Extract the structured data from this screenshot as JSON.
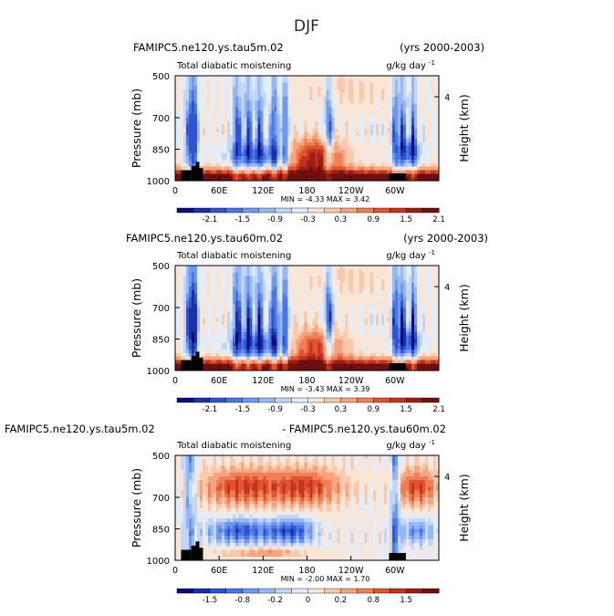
{
  "title": "DJF",
  "colors": {
    "colorbar_a": [
      "#0b0b7a",
      "#1c2fa6",
      "#2f54cf",
      "#4a77e6",
      "#6f98ee",
      "#98b8f2",
      "#c3d6f5",
      "#e3ecf7",
      "#fbe6d6",
      "#f8c9ab",
      "#f4a57f",
      "#ee7f56",
      "#e0542e",
      "#c3331d",
      "#9b1e15",
      "#6f1010"
    ],
    "colorbar_b": [
      "#0b0b7a",
      "#1c2fa6",
      "#2f54cf",
      "#4a77e6",
      "#6f98ee",
      "#98b8f2",
      "#c3d6f5",
      "#e3ecf7",
      "#fbe6d6",
      "#f8c9ab",
      "#f4a57f",
      "#ee7f56",
      "#e0542e",
      "#c3331d",
      "#9b1e15",
      "#6f1010"
    ],
    "topography": "#000000"
  },
  "chart_data": [
    {
      "type": "heatmap",
      "case_label": "FAMIPC5.ne120.ys.tau5m.02",
      "period": "(yrs 2000-2003)",
      "variable": "Total diabatic moistening",
      "units": "g/kg day",
      "units_exp": "-1",
      "ylabel": "Pressure (mb)",
      "y2label": "Height (km)",
      "yticks": [
        "500",
        "700",
        "850",
        "1000"
      ],
      "y2ticks": [
        "4"
      ],
      "xticks": [
        "0",
        "60E",
        "120E",
        "180",
        "120W",
        "60W"
      ],
      "ylim": [
        1000,
        500
      ],
      "minmax": "MIN =   -4.33  MAX =   3.42",
      "colorbar_labels": [
        "-2.1",
        "-1.5",
        "-0.9",
        "-0.3",
        "0.3",
        "0.9",
        "1.5",
        "2.1"
      ]
    },
    {
      "type": "heatmap",
      "case_label": "FAMIPC5.ne120.ys.tau60m.02",
      "period": "(yrs 2000-2003)",
      "variable": "Total diabatic moistening",
      "units": "g/kg day",
      "units_exp": "-1",
      "ylabel": "Pressure (mb)",
      "y2label": "Height (km)",
      "yticks": [
        "500",
        "700",
        "850",
        "1000"
      ],
      "y2ticks": [
        "4"
      ],
      "xticks": [
        "0",
        "60E",
        "120E",
        "180",
        "120W",
        "60W"
      ],
      "ylim": [
        1000,
        500
      ],
      "minmax": "MIN =   -3.43  MAX =   3.39",
      "colorbar_labels": [
        "-2.1",
        "-1.5",
        "-0.9",
        "-0.3",
        "0.3",
        "0.9",
        "1.5",
        "2.1"
      ]
    },
    {
      "type": "heatmap",
      "case_label": "FAMIPC5.ne120.ys.tau5m.02",
      "period": "- FAMIPC5.ne120.ys.tau60m.02",
      "variable": "Total diabatic moistening",
      "units": "g/kg day",
      "units_exp": "-1",
      "ylabel": "Pressure (mb)",
      "y2label": "Height (km)",
      "yticks": [
        "500",
        "700",
        "850",
        "1000"
      ],
      "y2ticks": [
        "4"
      ],
      "xticks": [
        "0",
        "60E",
        "120E",
        "180",
        "120W",
        "60W"
      ],
      "ylim": [
        1000,
        500
      ],
      "minmax": "MIN =   -2.00  MAX =   1.70",
      "colorbar_labels": [
        "-1.5",
        "-0.8",
        "-0.2",
        "0",
        "0.2",
        "0.8",
        "1.5"
      ]
    }
  ]
}
